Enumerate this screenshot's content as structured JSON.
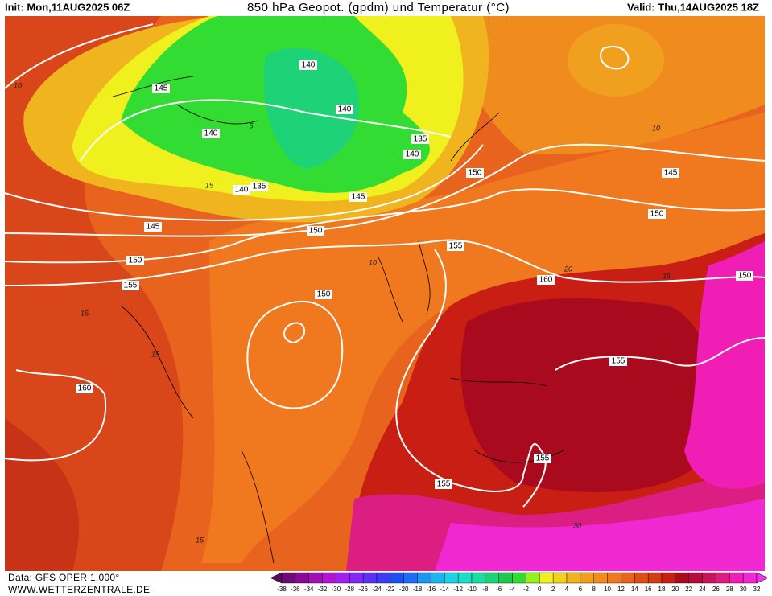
{
  "header": {
    "init": "Init: Mon,11AUG2025 06Z",
    "title": "850 hPa Geopot. (gpdm) und Temperatur (°C)",
    "valid": "Valid: Thu,14AUG2025 18Z"
  },
  "map": {
    "isoline_labels": [
      "140",
      "145",
      "140",
      "140",
      "135",
      "140",
      "150",
      "145",
      "150",
      "140",
      "135",
      "145",
      "150",
      "145",
      "155",
      "150",
      "160",
      "155",
      "150",
      "150",
      "155",
      "160",
      "155",
      "155"
    ],
    "isotherm_labels": [
      "10",
      "10",
      "10",
      "5",
      "15",
      "15",
      "15",
      "15",
      "15",
      "20",
      "30"
    ]
  },
  "colorbar": {
    "ticks": [
      -38,
      -36,
      -34,
      -32,
      -30,
      -28,
      -26,
      -24,
      -22,
      -20,
      -18,
      -16,
      -14,
      -12,
      -10,
      -8,
      -6,
      -4,
      -2,
      0,
      2,
      4,
      6,
      8,
      10,
      12,
      14,
      16,
      18,
      20,
      22,
      24,
      26,
      28,
      30,
      32
    ],
    "colors": [
      "#5a0a5a",
      "#6e0a78",
      "#8a0a96",
      "#a010b4",
      "#b414d2",
      "#a020f0",
      "#8228f0",
      "#5a32f0",
      "#3c3cf0",
      "#1e50f0",
      "#1e6ef0",
      "#1e96f0",
      "#1eb4f0",
      "#1ed2e6",
      "#1edcc8",
      "#1edca0",
      "#1ed278",
      "#1ec850",
      "#32dc32",
      "#96f01e",
      "#f0f01e",
      "#f0d21e",
      "#f0b41e",
      "#f0a01e",
      "#f08c1e",
      "#f0781e",
      "#e6641e",
      "#dc5014",
      "#d23c14",
      "#c81e14",
      "#aa0a1e",
      "#b40a3c",
      "#c8145a",
      "#dc1e82",
      "#f01eb4",
      "#f028d2",
      "#f032f0"
    ]
  },
  "footer": {
    "data": "Data: GFS OPER 1.000°",
    "site": "WWW.WETTERZENTRALE.DE"
  }
}
